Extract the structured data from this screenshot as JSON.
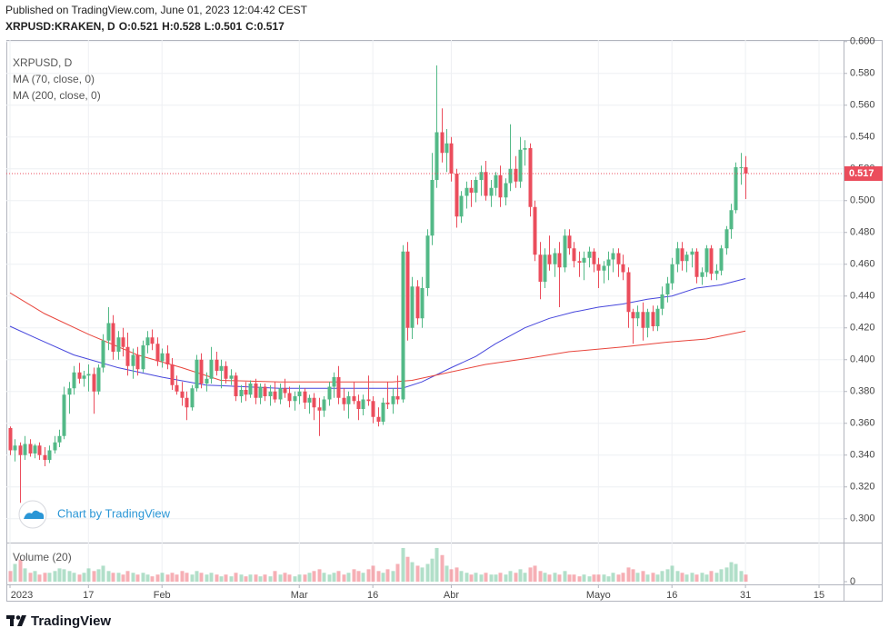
{
  "chart_data": {
    "type": "candlestick",
    "subtitle": "Published on TradingView.com, June 01, 2023 12:04:42 CEST",
    "title": "XRPUSD:KRAKEN, D",
    "ohlc_keys": [
      "O:",
      "H:",
      "L:",
      "C:"
    ],
    "name": "XRPUSD, D",
    "watermark": "Chart by TradingView",
    "brand": "TradingView",
    "volume_title": "Volume (20)",
    "up_color": "#53b987",
    "down_color": "#eb4d5c",
    "grid": true,
    "x": [
      "2023-01-01",
      "2023-01-02",
      "2023-01-03",
      "2023-01-04",
      "2023-01-05",
      "2023-01-06",
      "2023-01-07",
      "2023-01-08",
      "2023-01-09",
      "2023-01-10",
      "2023-01-11",
      "2023-01-12",
      "2023-01-13",
      "2023-01-14",
      "2023-01-15",
      "2023-01-16",
      "2023-01-17",
      "2023-01-18",
      "2023-01-19",
      "2023-01-20",
      "2023-01-21",
      "2023-01-22",
      "2023-01-23",
      "2023-01-24",
      "2023-01-25",
      "2023-01-26",
      "2023-01-27",
      "2023-01-28",
      "2023-01-29",
      "2023-01-30",
      "2023-01-31",
      "2023-02-01",
      "2023-02-02",
      "2023-02-03",
      "2023-02-04",
      "2023-02-05",
      "2023-02-06",
      "2023-02-07",
      "2023-02-08",
      "2023-02-09",
      "2023-02-10",
      "2023-02-11",
      "2023-02-12",
      "2023-02-13",
      "2023-02-14",
      "2023-02-15",
      "2023-02-16",
      "2023-02-17",
      "2023-02-18",
      "2023-02-19",
      "2023-02-20",
      "2023-02-21",
      "2023-02-22",
      "2023-02-23",
      "2023-02-24",
      "2023-02-25",
      "2023-02-26",
      "2023-02-27",
      "2023-02-28",
      "2023-03-01",
      "2023-03-02",
      "2023-03-03",
      "2023-03-04",
      "2023-03-05",
      "2023-03-06",
      "2023-03-07",
      "2023-03-08",
      "2023-03-09",
      "2023-03-10",
      "2023-03-11",
      "2023-03-12",
      "2023-03-13",
      "2023-03-14",
      "2023-03-15",
      "2023-03-16",
      "2023-03-17",
      "2023-03-18",
      "2023-03-19",
      "2023-03-20",
      "2023-03-21",
      "2023-03-22",
      "2023-03-23",
      "2023-03-24",
      "2023-03-25",
      "2023-03-26",
      "2023-03-27",
      "2023-03-28",
      "2023-03-29",
      "2023-03-30",
      "2023-03-31",
      "2023-04-01",
      "2023-04-02",
      "2023-04-03",
      "2023-04-04",
      "2023-04-05",
      "2023-04-06",
      "2023-04-07",
      "2023-04-08",
      "2023-04-09",
      "2023-04-10",
      "2023-04-11",
      "2023-04-12",
      "2023-04-13",
      "2023-04-14",
      "2023-04-15",
      "2023-04-16",
      "2023-04-17",
      "2023-04-18",
      "2023-04-19",
      "2023-04-20",
      "2023-04-21",
      "2023-04-22",
      "2023-04-23",
      "2023-04-24",
      "2023-04-25",
      "2023-04-26",
      "2023-04-27",
      "2023-04-28",
      "2023-04-29",
      "2023-04-30",
      "2023-05-01",
      "2023-05-02",
      "2023-05-03",
      "2023-05-04",
      "2023-05-05",
      "2023-05-06",
      "2023-05-07",
      "2023-05-08",
      "2023-05-09",
      "2023-05-10",
      "2023-05-11",
      "2023-05-12",
      "2023-05-13",
      "2023-05-14",
      "2023-05-15",
      "2023-05-16",
      "2023-05-17",
      "2023-05-18",
      "2023-05-19",
      "2023-05-20",
      "2023-05-21",
      "2023-05-22",
      "2023-05-23",
      "2023-05-24",
      "2023-05-25",
      "2023-05-26",
      "2023-05-27",
      "2023-05-28",
      "2023-05-29",
      "2023-05-30",
      "2023-05-31"
    ],
    "open": [
      0.357,
      0.343,
      0.346,
      0.34,
      0.347,
      0.341,
      0.346,
      0.34,
      0.337,
      0.343,
      0.348,
      0.352,
      0.378,
      0.382,
      0.392,
      0.388,
      0.39,
      0.391,
      0.38,
      0.395,
      0.412,
      0.423,
      0.405,
      0.414,
      0.408,
      0.396,
      0.403,
      0.394,
      0.409,
      0.414,
      0.41,
      0.399,
      0.404,
      0.397,
      0.384,
      0.38,
      0.376,
      0.37,
      0.382,
      0.4,
      0.385,
      0.388,
      0.4,
      0.393,
      0.396,
      0.388,
      0.39,
      0.377,
      0.381,
      0.378,
      0.385,
      0.376,
      0.383,
      0.377,
      0.38,
      0.375,
      0.382,
      0.379,
      0.374,
      0.377,
      0.38,
      0.373,
      0.376,
      0.37,
      0.368,
      0.375,
      0.383,
      0.389,
      0.376,
      0.372,
      0.377,
      0.374,
      0.369,
      0.375,
      0.374,
      0.364,
      0.361,
      0.373,
      0.372,
      0.377,
      0.375,
      0.468,
      0.42,
      0.446,
      0.426,
      0.445,
      0.478,
      0.513,
      0.543,
      0.53,
      0.536,
      0.517,
      0.49,
      0.503,
      0.508,
      0.505,
      0.513,
      0.518,
      0.503,
      0.508,
      0.516,
      0.502,
      0.511,
      0.52,
      0.512,
      0.532,
      0.533,
      0.496,
      0.466,
      0.449,
      0.466,
      0.46,
      0.467,
      0.458,
      0.478,
      0.47,
      0.462,
      0.461,
      0.464,
      0.468,
      0.46,
      0.456,
      0.459,
      0.463,
      0.467,
      0.46,
      0.455,
      0.43,
      0.426,
      0.43,
      0.42,
      0.43,
      0.421,
      0.432,
      0.441,
      0.448,
      0.46,
      0.47,
      0.462,
      0.466,
      0.468,
      0.452,
      0.455,
      0.47,
      0.454,
      0.456,
      0.47,
      0.482,
      0.494,
      0.521,
      0.521
    ],
    "high": [
      0.358,
      0.35,
      0.348,
      0.352,
      0.35,
      0.347,
      0.348,
      0.345,
      0.346,
      0.352,
      0.356,
      0.383,
      0.386,
      0.396,
      0.398,
      0.393,
      0.397,
      0.395,
      0.397,
      0.416,
      0.433,
      0.428,
      0.418,
      0.42,
      0.417,
      0.407,
      0.408,
      0.412,
      0.418,
      0.419,
      0.414,
      0.407,
      0.409,
      0.401,
      0.39,
      0.386,
      0.38,
      0.384,
      0.403,
      0.404,
      0.392,
      0.408,
      0.405,
      0.4,
      0.399,
      0.394,
      0.392,
      0.384,
      0.386,
      0.387,
      0.388,
      0.385,
      0.385,
      0.384,
      0.386,
      0.385,
      0.388,
      0.383,
      0.38,
      0.384,
      0.382,
      0.378,
      0.379,
      0.376,
      0.377,
      0.386,
      0.392,
      0.396,
      0.382,
      0.38,
      0.386,
      0.378,
      0.378,
      0.39,
      0.377,
      0.37,
      0.376,
      0.386,
      0.382,
      0.39,
      0.472,
      0.474,
      0.452,
      0.45,
      0.452,
      0.482,
      0.53,
      0.585,
      0.558,
      0.545,
      0.54,
      0.52,
      0.506,
      0.512,
      0.513,
      0.515,
      0.522,
      0.525,
      0.513,
      0.518,
      0.522,
      0.514,
      0.548,
      0.528,
      0.54,
      0.538,
      0.536,
      0.5,
      0.474,
      0.47,
      0.478,
      0.47,
      0.474,
      0.482,
      0.482,
      0.474,
      0.468,
      0.468,
      0.471,
      0.47,
      0.464,
      0.462,
      0.468,
      0.47,
      0.47,
      0.466,
      0.458,
      0.432,
      0.434,
      0.436,
      0.432,
      0.434,
      0.434,
      0.446,
      0.452,
      0.464,
      0.474,
      0.474,
      0.468,
      0.47,
      0.47,
      0.458,
      0.472,
      0.472,
      0.46,
      0.472,
      0.484,
      0.498,
      0.524,
      0.53,
      0.528
    ],
    "low": [
      0.34,
      0.336,
      0.31,
      0.337,
      0.339,
      0.338,
      0.337,
      0.333,
      0.335,
      0.341,
      0.345,
      0.35,
      0.366,
      0.378,
      0.385,
      0.383,
      0.38,
      0.366,
      0.378,
      0.392,
      0.406,
      0.4,
      0.4,
      0.402,
      0.39,
      0.388,
      0.39,
      0.392,
      0.404,
      0.406,
      0.396,
      0.395,
      0.394,
      0.381,
      0.378,
      0.371,
      0.362,
      0.368,
      0.38,
      0.382,
      0.38,
      0.385,
      0.39,
      0.382,
      0.385,
      0.384,
      0.374,
      0.373,
      0.374,
      0.376,
      0.372,
      0.372,
      0.374,
      0.371,
      0.373,
      0.372,
      0.376,
      0.37,
      0.368,
      0.372,
      0.369,
      0.366,
      0.362,
      0.352,
      0.364,
      0.371,
      0.376,
      0.372,
      0.368,
      0.363,
      0.372,
      0.362,
      0.365,
      0.371,
      0.36,
      0.358,
      0.359,
      0.369,
      0.366,
      0.372,
      0.373,
      0.412,
      0.413,
      0.422,
      0.42,
      0.44,
      0.472,
      0.508,
      0.524,
      0.518,
      0.512,
      0.483,
      0.486,
      0.495,
      0.496,
      0.499,
      0.503,
      0.5,
      0.496,
      0.503,
      0.496,
      0.497,
      0.506,
      0.508,
      0.508,
      0.522,
      0.49,
      0.462,
      0.438,
      0.445,
      0.456,
      0.452,
      0.433,
      0.455,
      0.466,
      0.458,
      0.452,
      0.45,
      0.458,
      0.455,
      0.445,
      0.448,
      0.45,
      0.455,
      0.452,
      0.45,
      0.42,
      0.41,
      0.421,
      0.412,
      0.414,
      0.418,
      0.418,
      0.428,
      0.436,
      0.444,
      0.455,
      0.456,
      0.455,
      0.458,
      0.448,
      0.447,
      0.452,
      0.45,
      0.45,
      0.453,
      0.466,
      0.476,
      0.492,
      0.51,
      0.501
    ],
    "close": [
      0.343,
      0.346,
      0.34,
      0.347,
      0.341,
      0.346,
      0.34,
      0.337,
      0.343,
      0.348,
      0.352,
      0.378,
      0.382,
      0.392,
      0.388,
      0.39,
      0.391,
      0.38,
      0.395,
      0.412,
      0.423,
      0.405,
      0.414,
      0.408,
      0.396,
      0.403,
      0.394,
      0.409,
      0.414,
      0.41,
      0.399,
      0.404,
      0.397,
      0.384,
      0.38,
      0.376,
      0.37,
      0.382,
      0.4,
      0.385,
      0.388,
      0.4,
      0.393,
      0.396,
      0.388,
      0.39,
      0.377,
      0.381,
      0.378,
      0.385,
      0.376,
      0.383,
      0.377,
      0.38,
      0.375,
      0.382,
      0.379,
      0.374,
      0.377,
      0.38,
      0.373,
      0.376,
      0.37,
      0.368,
      0.375,
      0.383,
      0.389,
      0.376,
      0.372,
      0.377,
      0.374,
      0.369,
      0.375,
      0.374,
      0.364,
      0.361,
      0.373,
      0.372,
      0.377,
      0.375,
      0.468,
      0.42,
      0.446,
      0.426,
      0.445,
      0.478,
      0.513,
      0.543,
      0.53,
      0.536,
      0.517,
      0.49,
      0.503,
      0.508,
      0.505,
      0.513,
      0.518,
      0.503,
      0.508,
      0.516,
      0.502,
      0.511,
      0.52,
      0.512,
      0.532,
      0.533,
      0.496,
      0.466,
      0.449,
      0.466,
      0.46,
      0.467,
      0.458,
      0.478,
      0.47,
      0.462,
      0.461,
      0.464,
      0.468,
      0.46,
      0.456,
      0.459,
      0.463,
      0.467,
      0.46,
      0.455,
      0.43,
      0.426,
      0.43,
      0.42,
      0.43,
      0.421,
      0.432,
      0.441,
      0.448,
      0.46,
      0.47,
      0.462,
      0.466,
      0.468,
      0.452,
      0.455,
      0.47,
      0.454,
      0.456,
      0.47,
      0.482,
      0.494,
      0.521,
      0.521,
      0.517
    ],
    "volume": {
      "values": [
        12,
        20,
        25,
        15,
        10,
        12,
        8,
        10,
        10,
        12,
        15,
        14,
        12,
        10,
        8,
        10,
        15,
        12,
        14,
        18,
        12,
        10,
        10,
        8,
        12,
        10,
        8,
        10,
        8,
        6,
        8,
        10,
        8,
        10,
        8,
        12,
        10,
        8,
        12,
        10,
        8,
        10,
        8,
        6,
        8,
        6,
        10,
        8,
        6,
        8,
        8,
        6,
        8,
        6,
        12,
        8,
        10,
        8,
        6,
        8,
        8,
        10,
        12,
        14,
        10,
        8,
        10,
        12,
        8,
        10,
        14,
        12,
        10,
        14,
        18,
        12,
        10,
        14,
        12,
        20,
        38,
        28,
        22,
        18,
        16,
        20,
        26,
        38,
        30,
        18,
        14,
        16,
        12,
        10,
        8,
        10,
        8,
        10,
        8,
        8,
        10,
        8,
        12,
        10,
        14,
        10,
        16,
        18,
        12,
        10,
        8,
        10,
        8,
        12,
        8,
        8,
        6,
        8,
        6,
        8,
        8,
        8,
        6,
        10,
        8,
        10,
        16,
        14,
        10,
        12,
        8,
        10,
        8,
        12,
        14,
        18,
        12,
        10,
        8,
        10,
        8,
        10,
        8,
        12,
        10,
        14,
        16,
        22,
        20,
        12,
        8
      ],
      "ylim": [
        0,
        40
      ],
      "yticks": [
        0
      ]
    },
    "ma": [
      {
        "name": "MA (70, close, 0)",
        "color": "#4646dc",
        "x": [
          "2023-01-01",
          "2023-01-06",
          "2023-01-14",
          "2023-01-23",
          "2023-02-01",
          "2023-02-10",
          "2023-02-25",
          "2023-03-14",
          "2023-03-22",
          "2023-03-26",
          "2023-04-01",
          "2023-04-06",
          "2023-04-10",
          "2023-04-16",
          "2023-04-21",
          "2023-04-26",
          "2023-05-01",
          "2023-05-06",
          "2023-05-11",
          "2023-05-16",
          "2023-05-21",
          "2023-05-26",
          "2023-05-31"
        ],
        "values": [
          0.421,
          0.414,
          0.403,
          0.395,
          0.389,
          0.384,
          0.382,
          0.382,
          0.382,
          0.386,
          0.395,
          0.402,
          0.41,
          0.42,
          0.426,
          0.43,
          0.433,
          0.435,
          0.438,
          0.44,
          0.445,
          0.447,
          0.451
        ]
      },
      {
        "name": "MA (200, close, 0)",
        "color": "#e8453c",
        "x": [
          "2023-01-01",
          "2023-01-08",
          "2023-01-17",
          "2023-01-27",
          "2023-02-05",
          "2023-02-13",
          "2023-02-25",
          "2023-03-10",
          "2023-03-20",
          "2023-03-24",
          "2023-03-30",
          "2023-04-08",
          "2023-04-17",
          "2023-04-25",
          "2023-05-06",
          "2023-05-15",
          "2023-05-23",
          "2023-05-31"
        ],
        "values": [
          0.442,
          0.429,
          0.416,
          0.403,
          0.395,
          0.387,
          0.386,
          0.386,
          0.386,
          0.387,
          0.391,
          0.397,
          0.401,
          0.405,
          0.408,
          0.411,
          0.413,
          0.418
        ]
      }
    ],
    "xlim": [
      "2023-01-01",
      "2023-06-20"
    ],
    "xticks": [
      {
        "value": "2023-01-01",
        "label": "2023"
      },
      {
        "value": "2023-01-17",
        "label": "17"
      },
      {
        "value": "2023-02-01",
        "label": "Feb"
      },
      {
        "value": "2023-03-01",
        "label": "Mar"
      },
      {
        "value": "2023-03-16",
        "label": "16"
      },
      {
        "value": "2023-04-01",
        "label": "Abr"
      },
      {
        "value": "2023-05-01",
        "label": "Mayo"
      },
      {
        "value": "2023-05-16",
        "label": "16"
      },
      {
        "value": "2023-05-31",
        "label": "31"
      },
      {
        "value": "2023-06-15",
        "label": "15"
      }
    ],
    "ylim": [
      0.285,
      0.601
    ],
    "yticks": [
      {
        "value": 0.3,
        "label": "0.300"
      },
      {
        "value": 0.32,
        "label": "0.320"
      },
      {
        "value": 0.34,
        "label": "0.340"
      },
      {
        "value": 0.36,
        "label": "0.360"
      },
      {
        "value": 0.38,
        "label": "0.380"
      },
      {
        "value": 0.4,
        "label": "0.400"
      },
      {
        "value": 0.42,
        "label": "0.420"
      },
      {
        "value": 0.44,
        "label": "0.440"
      },
      {
        "value": 0.46,
        "label": "0.460"
      },
      {
        "value": 0.48,
        "label": "0.480"
      },
      {
        "value": 0.5,
        "label": "0.500"
      },
      {
        "value": 0.52,
        "label": "0.520"
      },
      {
        "value": 0.54,
        "label": "0.540"
      },
      {
        "value": 0.56,
        "label": "0.560"
      },
      {
        "value": 0.58,
        "label": "0.580"
      },
      {
        "value": 0.6,
        "label": "0.600"
      }
    ]
  }
}
